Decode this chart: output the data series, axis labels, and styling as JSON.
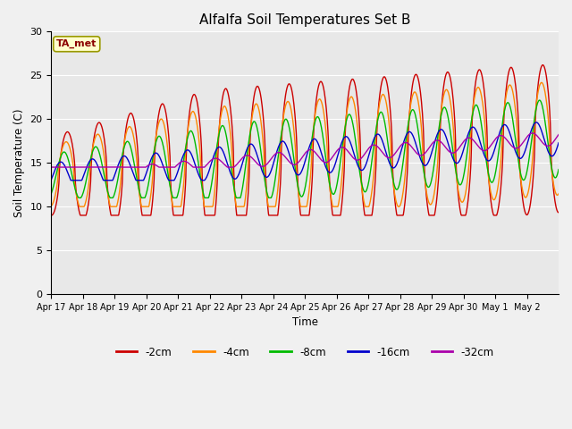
{
  "title": "Alfalfa Soil Temperatures Set B",
  "xlabel": "Time",
  "ylabel": "Soil Temperature (C)",
  "ylim": [
    0,
    30
  ],
  "yticks": [
    0,
    5,
    10,
    15,
    20,
    25,
    30
  ],
  "xtick_labels": [
    "Apr 17",
    "Apr 18",
    "Apr 19",
    "Apr 20",
    "Apr 21",
    "Apr 22",
    "Apr 23",
    "Apr 24",
    "Apr 25",
    "Apr 26",
    "Apr 27",
    "Apr 28",
    "Apr 29",
    "Apr 30",
    "May 1",
    "May 2"
  ],
  "plot_bg_color": "#e8e8e8",
  "fig_bg_color": "#f0f0f0",
  "legend_label": "TA_met",
  "series_colors": {
    "-2cm": "#cc0000",
    "-4cm": "#ff8800",
    "-8cm": "#00bb00",
    "-16cm": "#0000cc",
    "-32cm": "#aa00aa"
  },
  "series_labels": [
    "-2cm",
    "-4cm",
    "-8cm",
    "-16cm",
    "-32cm"
  ]
}
